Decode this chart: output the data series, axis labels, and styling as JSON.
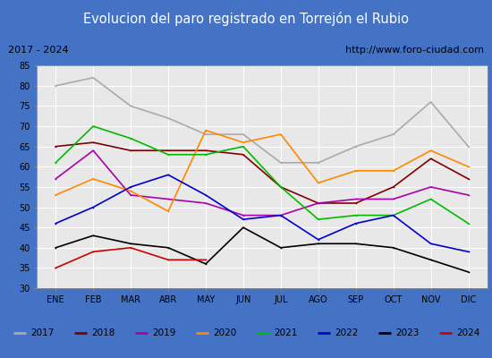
{
  "title": "Evolucion del paro registrado en Torrejón el Rubio",
  "subtitle_left": "2017 - 2024",
  "subtitle_right": "http://www.foro-ciudad.com",
  "months": [
    "ENE",
    "FEB",
    "MAR",
    "ABR",
    "MAY",
    "JUN",
    "JUL",
    "AGO",
    "SEP",
    "OCT",
    "NOV",
    "DIC"
  ],
  "ylim": [
    30,
    85
  ],
  "yticks": [
    30,
    35,
    40,
    45,
    50,
    55,
    60,
    65,
    70,
    75,
    80,
    85
  ],
  "series": {
    "2017": {
      "values": [
        80,
        82,
        75,
        72,
        68,
        68,
        61,
        61,
        65,
        68,
        76,
        65
      ],
      "color": "#aaaaaa",
      "linewidth": 1.2
    },
    "2018": {
      "values": [
        65,
        66,
        64,
        64,
        64,
        63,
        55,
        51,
        51,
        55,
        62,
        57
      ],
      "color": "#800000",
      "linewidth": 1.2
    },
    "2019": {
      "values": [
        57,
        64,
        53,
        52,
        51,
        48,
        48,
        51,
        52,
        52,
        55,
        53
      ],
      "color": "#aa00aa",
      "linewidth": 1.2
    },
    "2020": {
      "values": [
        53,
        57,
        54,
        49,
        69,
        66,
        68,
        56,
        59,
        59,
        64,
        60
      ],
      "color": "#ff8800",
      "linewidth": 1.2
    },
    "2021": {
      "values": [
        61,
        70,
        67,
        63,
        63,
        65,
        55,
        47,
        48,
        48,
        52,
        46
      ],
      "color": "#00bb00",
      "linewidth": 1.2
    },
    "2022": {
      "values": [
        46,
        50,
        55,
        58,
        53,
        47,
        48,
        42,
        46,
        48,
        41,
        39
      ],
      "color": "#0000cc",
      "linewidth": 1.2
    },
    "2023": {
      "values": [
        40,
        43,
        41,
        40,
        36,
        45,
        40,
        41,
        41,
        40,
        37,
        34
      ],
      "color": "#000000",
      "linewidth": 1.2
    },
    "2024": {
      "values": [
        35,
        39,
        40,
        37,
        37,
        null,
        null,
        null,
        null,
        null,
        null,
        null
      ],
      "color": "#cc0000",
      "linewidth": 1.2
    }
  },
  "title_bg": "#4472c4",
  "title_color": "#ffffff",
  "subtitle_bg": "#d8d8d8",
  "plot_bg": "#e8e8e8",
  "grid_color": "#ffffff",
  "legend_bg": "#d8d8d8",
  "fig_bg": "#4472c4"
}
